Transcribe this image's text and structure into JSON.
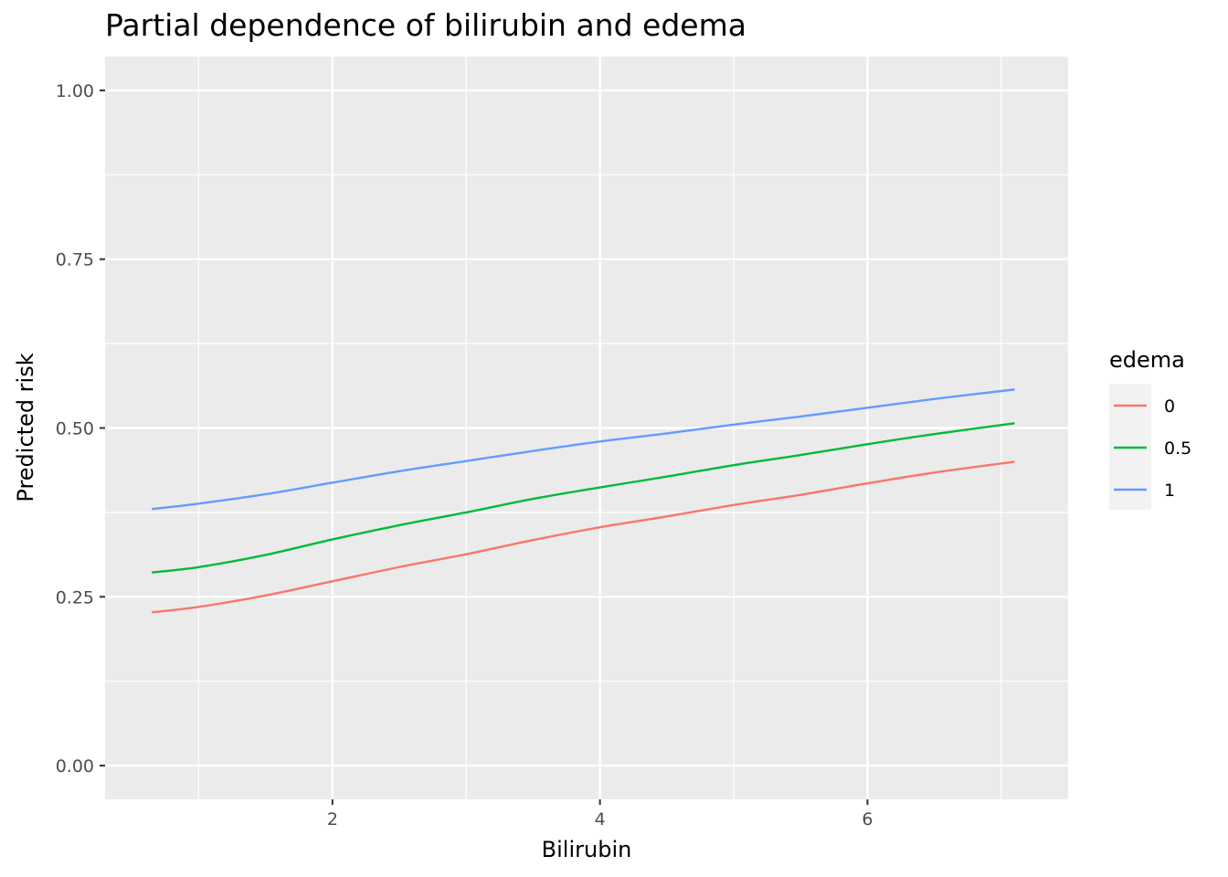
{
  "chart_data": {
    "type": "line",
    "title": "Partial dependence of bilirubin and edema",
    "xlabel": "Bilirubin",
    "ylabel": "Predicted risk",
    "xlim": [
      0.3,
      7.5
    ],
    "ylim": [
      -0.05,
      1.05
    ],
    "x_ticks": [
      2,
      4,
      6
    ],
    "x_tick_labels": [
      "2",
      "4",
      "6"
    ],
    "x_minor_ticks": [
      1,
      3,
      5,
      7
    ],
    "y_ticks": [
      0.0,
      0.25,
      0.5,
      0.75,
      1.0
    ],
    "y_tick_labels": [
      "0.00",
      "0.25",
      "0.50",
      "0.75",
      "1.00"
    ],
    "y_minor_ticks": [
      0.125,
      0.375,
      0.625,
      0.875
    ],
    "grid": true,
    "legend": {
      "title": "edema",
      "position": "right"
    },
    "x": [
      0.65,
      1.0,
      1.5,
      2.0,
      2.5,
      3.0,
      3.5,
      4.0,
      4.5,
      5.0,
      5.5,
      6.0,
      6.5,
      7.1
    ],
    "series": [
      {
        "name": "0",
        "color": "#F8766D",
        "values": [
          0.227,
          0.235,
          0.252,
          0.273,
          0.294,
          0.313,
          0.334,
          0.353,
          0.369,
          0.386,
          0.401,
          0.418,
          0.434,
          0.45
        ]
      },
      {
        "name": "0.5",
        "color": "#00BA38",
        "values": [
          0.286,
          0.294,
          0.312,
          0.335,
          0.356,
          0.375,
          0.395,
          0.412,
          0.428,
          0.445,
          0.46,
          0.476,
          0.491,
          0.507
        ]
      },
      {
        "name": "1",
        "color": "#619CFF",
        "values": [
          0.38,
          0.388,
          0.402,
          0.419,
          0.436,
          0.451,
          0.466,
          0.48,
          0.492,
          0.505,
          0.517,
          0.53,
          0.543,
          0.557
        ]
      }
    ]
  }
}
